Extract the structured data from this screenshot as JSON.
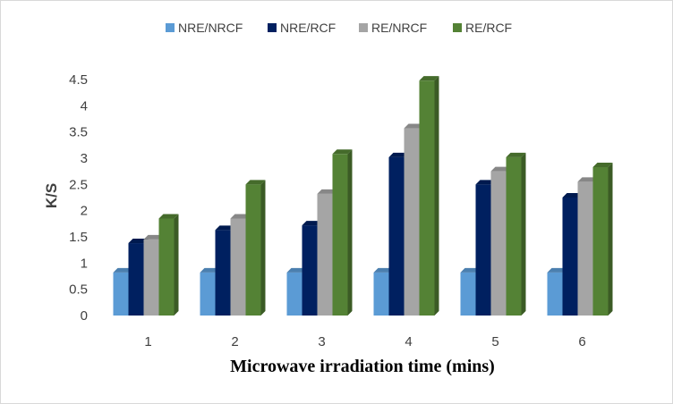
{
  "chart_data": {
    "type": "bar",
    "title": "",
    "xlabel": "Microwave irradiation time (mins)",
    "ylabel": "K/S",
    "categories": [
      "1",
      "2",
      "3",
      "4",
      "5",
      "6"
    ],
    "ylim": [
      0,
      4.5
    ],
    "yticks": [
      "0",
      "0.5",
      "1",
      "1.5",
      "2",
      "2.5",
      "3",
      "3.5",
      "4",
      "4.5"
    ],
    "legend_position": "top",
    "grid": false,
    "style": "3d-column",
    "series": [
      {
        "name": "NRE/NRCF",
        "color": "#5b9bd5",
        "values": [
          0.82,
          0.82,
          0.82,
          0.82,
          0.82,
          0.82
        ]
      },
      {
        "name": "NRE/RCF",
        "color": "#002060",
        "values": [
          1.38,
          1.63,
          1.72,
          3.02,
          2.5,
          2.25
        ]
      },
      {
        "name": "RE/NRCF",
        "color": "#a5a5a5",
        "values": [
          1.45,
          1.85,
          2.32,
          3.57,
          2.75,
          2.55
        ]
      },
      {
        "name": "RE/RCF",
        "color": "#548235",
        "values": [
          1.85,
          2.5,
          3.08,
          4.48,
          3.02,
          2.83
        ]
      }
    ]
  }
}
